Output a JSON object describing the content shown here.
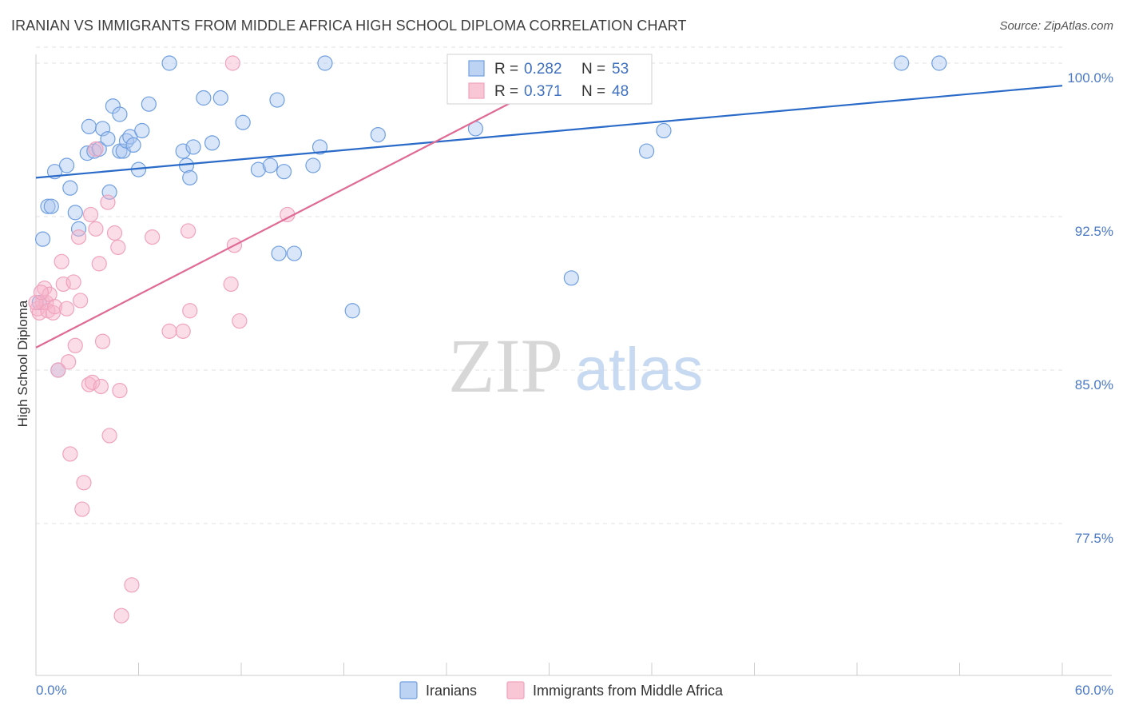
{
  "title": "IRANIAN VS IMMIGRANTS FROM MIDDLE AFRICA HIGH SCHOOL DIPLOMA CORRELATION CHART",
  "source": "Source: ZipAtlas.com",
  "watermark": {
    "zip": "ZIP",
    "atlas": "atlas"
  },
  "legend_top": {
    "r_label": "R =",
    "n_label": "N =",
    "rows": [
      {
        "r": "0.282",
        "n": "53"
      },
      {
        "r": "0.371",
        "n": "48"
      }
    ]
  },
  "chart_data": {
    "type": "scatter",
    "title": "IRANIAN VS IMMIGRANTS FROM MIDDLE AFRICA HIGH SCHOOL DIPLOMA CORRELATION CHART",
    "xlabel": "",
    "ylabel": "High School Diploma",
    "xlim": [
      0,
      60
    ],
    "ylim": [
      70.8,
      100.8
    ],
    "x_tick_labels": [
      "0.0%",
      "60.0%"
    ],
    "y_ticks": [
      77.5,
      85.0,
      92.5,
      100.0
    ],
    "y_tick_labels": [
      "77.5%",
      "85.0%",
      "92.5%",
      "100.0%"
    ],
    "grid": true,
    "legend_position": "bottom",
    "series": [
      {
        "name": "Iranians",
        "color": "#6f9fe0",
        "trend": {
          "x": [
            0,
            60
          ],
          "y": [
            94.4,
            98.9
          ]
        },
        "points": [
          [
            0.4,
            91.4
          ],
          [
            0.7,
            93.0
          ],
          [
            0.9,
            93.0
          ],
          [
            1.1,
            94.7
          ],
          [
            1.3,
            85.0
          ],
          [
            1.8,
            95.0
          ],
          [
            2.0,
            93.9
          ],
          [
            2.3,
            92.7
          ],
          [
            2.5,
            91.9
          ],
          [
            3.0,
            95.6
          ],
          [
            3.1,
            96.9
          ],
          [
            3.4,
            95.7
          ],
          [
            3.7,
            95.8
          ],
          [
            3.9,
            96.8
          ],
          [
            4.2,
            96.3
          ],
          [
            4.3,
            93.7
          ],
          [
            4.5,
            97.9
          ],
          [
            4.9,
            97.5
          ],
          [
            4.9,
            95.7
          ],
          [
            5.1,
            95.7
          ],
          [
            5.3,
            96.2
          ],
          [
            5.5,
            96.4
          ],
          [
            5.7,
            96.0
          ],
          [
            6.0,
            94.8
          ],
          [
            6.2,
            96.7
          ],
          [
            6.6,
            98.0
          ],
          [
            7.8,
            100.0
          ],
          [
            8.6,
            95.7
          ],
          [
            8.8,
            95.0
          ],
          [
            9.0,
            94.4
          ],
          [
            9.2,
            95.9
          ],
          [
            9.8,
            98.3
          ],
          [
            10.3,
            96.1
          ],
          [
            10.8,
            98.3
          ],
          [
            12.1,
            97.1
          ],
          [
            13.0,
            94.8
          ],
          [
            13.7,
            95.0
          ],
          [
            14.1,
            98.2
          ],
          [
            14.2,
            90.7
          ],
          [
            14.5,
            94.7
          ],
          [
            15.1,
            90.7
          ],
          [
            16.2,
            95.0
          ],
          [
            16.6,
            95.9
          ],
          [
            16.9,
            100.0
          ],
          [
            18.5,
            87.9
          ],
          [
            20.0,
            96.5
          ],
          [
            25.7,
            96.8
          ],
          [
            31.3,
            89.5
          ],
          [
            35.7,
            95.7
          ],
          [
            36.7,
            96.7
          ],
          [
            50.6,
            100.0
          ],
          [
            52.8,
            100.0
          ],
          [
            0.2,
            88.3
          ]
        ]
      },
      {
        "name": "Immigrants from Middle Africa",
        "color": "#f0a3bc",
        "trend": {
          "x": [
            0,
            30.4
          ],
          "y": [
            86.1,
            99.2
          ]
        },
        "points": [
          [
            0.1,
            88.0
          ],
          [
            0.2,
            87.8
          ],
          [
            0.4,
            88.3
          ],
          [
            0.5,
            89.0
          ],
          [
            0.6,
            88.3
          ],
          [
            0.7,
            87.9
          ],
          [
            0.8,
            88.7
          ],
          [
            1.0,
            87.8
          ],
          [
            1.1,
            88.1
          ],
          [
            1.3,
            85.0
          ],
          [
            1.5,
            90.3
          ],
          [
            1.6,
            89.2
          ],
          [
            1.8,
            88.0
          ],
          [
            1.9,
            85.4
          ],
          [
            2.0,
            80.9
          ],
          [
            2.2,
            89.3
          ],
          [
            2.3,
            86.2
          ],
          [
            2.5,
            91.5
          ],
          [
            2.6,
            88.4
          ],
          [
            2.7,
            78.2
          ],
          [
            2.8,
            79.5
          ],
          [
            3.1,
            84.3
          ],
          [
            3.2,
            92.6
          ],
          [
            3.3,
            84.4
          ],
          [
            3.5,
            95.8
          ],
          [
            3.5,
            91.9
          ],
          [
            3.7,
            90.2
          ],
          [
            3.8,
            84.2
          ],
          [
            3.9,
            86.4
          ],
          [
            4.2,
            93.2
          ],
          [
            4.3,
            81.8
          ],
          [
            4.6,
            91.7
          ],
          [
            4.8,
            91.0
          ],
          [
            4.9,
            84.0
          ],
          [
            5.0,
            73.0
          ],
          [
            5.6,
            74.5
          ],
          [
            6.8,
            91.5
          ],
          [
            7.8,
            86.9
          ],
          [
            8.6,
            86.9
          ],
          [
            8.9,
            91.8
          ],
          [
            9.0,
            87.9
          ],
          [
            11.4,
            89.2
          ],
          [
            11.5,
            100.0
          ],
          [
            11.6,
            91.1
          ],
          [
            11.9,
            87.4
          ],
          [
            14.7,
            92.6
          ],
          [
            0.0,
            88.3
          ],
          [
            0.3,
            88.8
          ]
        ]
      }
    ]
  }
}
